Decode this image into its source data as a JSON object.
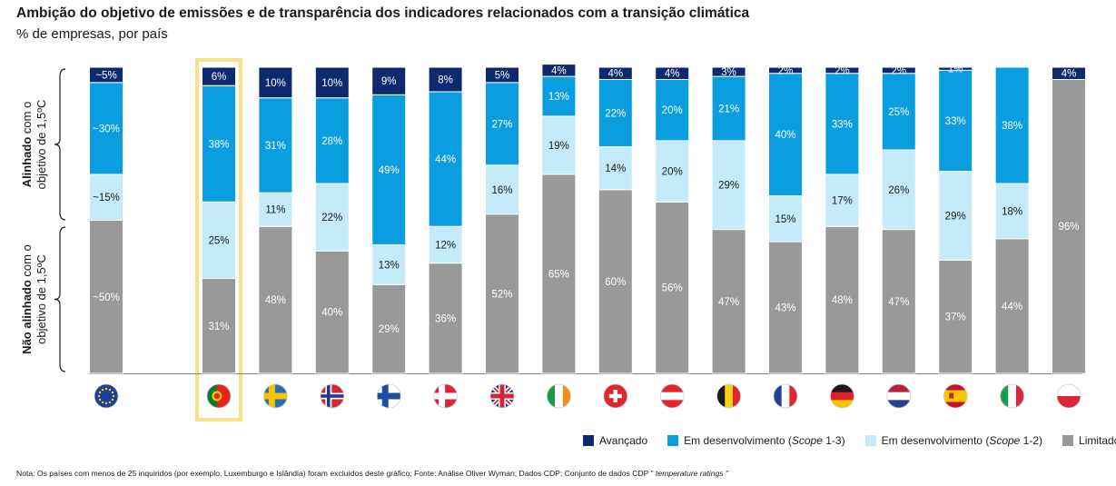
{
  "header": {
    "title": "Ambição do objetivo de emissões e de transparência dos indicadores relacionados com a transição climática",
    "subtitle": "% de empresas, por país"
  },
  "chart_data": {
    "type": "bar",
    "stacked": true,
    "orientation": "vertical-100",
    "categories": [
      "EU",
      "Portugal",
      "Sweden",
      "Norway",
      "Finland",
      "Denmark",
      "United Kingdom",
      "Ireland",
      "Switzerland",
      "Austria",
      "Belgium",
      "France",
      "Germany",
      "Netherlands",
      "Spain",
      "Italy",
      "Poland"
    ],
    "highlight_category": "Portugal",
    "series": [
      {
        "name": "Limitado",
        "color": "#999999",
        "values": [
          50,
          31,
          48,
          40,
          29,
          36,
          52,
          65,
          60,
          56,
          47,
          43,
          48,
          47,
          37,
          44,
          96
        ],
        "labels": [
          "~50%",
          "31%",
          "48%",
          "40%",
          "29%",
          "36%",
          "52%",
          "65%",
          "60%",
          "56%",
          "47%",
          "43%",
          "48%",
          "47%",
          "37%",
          "44%",
          "96%"
        ]
      },
      {
        "name": "Em desenvolvimento (Scope 1-2)",
        "color": "#c5ebfb",
        "values": [
          15,
          25,
          11,
          22,
          13,
          12,
          16,
          19,
          14,
          20,
          29,
          15,
          17,
          26,
          29,
          18,
          0
        ],
        "labels": [
          "~15%",
          "25%",
          "11%",
          "22%",
          "13%",
          "12%",
          "16%",
          "19%",
          "14%",
          "20%",
          "29%",
          "15%",
          "17%",
          "26%",
          "29%",
          "18%",
          ""
        ]
      },
      {
        "name": "Em desenvolvimento (Scope 1-3)",
        "color": "#0a9ee0",
        "values": [
          30,
          38,
          31,
          28,
          49,
          44,
          27,
          13,
          22,
          20,
          21,
          40,
          33,
          25,
          33,
          38,
          0
        ],
        "labels": [
          "~30%",
          "38%",
          "31%",
          "28%",
          "49%",
          "44%",
          "27%",
          "13%",
          "22%",
          "20%",
          "21%",
          "40%",
          "33%",
          "25%",
          "33%",
          "38%",
          ""
        ]
      },
      {
        "name": "Avançado",
        "color": "#0d2a6e",
        "values": [
          5,
          6,
          10,
          10,
          9,
          8,
          5,
          4,
          4,
          4,
          3,
          2,
          2,
          2,
          1,
          0,
          4
        ],
        "labels": [
          "~5%",
          "6%",
          "10%",
          "10%",
          "9%",
          "8%",
          "5%",
          "4%",
          "4%",
          "4%",
          "3%",
          "2%",
          "2%",
          "2%",
          "1%",
          "",
          "4%"
        ]
      }
    ],
    "group_labels": [
      {
        "bold": "Alinhado",
        "rest_line1": " com o",
        "line2": "objetivo de 1,5ºC"
      },
      {
        "bold": "Não alinhado",
        "rest_line1": " com o",
        "line2": "objetivo de 1,5ºC"
      }
    ],
    "ylim": [
      0,
      100
    ]
  },
  "legend": {
    "items": [
      {
        "label": "Avançado",
        "color": "#0d2a6e"
      },
      {
        "label_pre": "Em desenvolvimento (",
        "label_em": "Scope",
        "label_post": " 1-3)",
        "color": "#0a9ee0"
      },
      {
        "label_pre": "Em desenvolvimento (",
        "label_em": "Scope",
        "label_post": " 1-2)",
        "color": "#c5ebfb"
      },
      {
        "label": "Limitado",
        "color": "#999999"
      }
    ]
  },
  "footnote": {
    "text": "Nota: Os países com menos de 25 inquiridos (por exemplo, Luxemburgo e Islândia) foram excluídos deste gráfico; Fonte: Análise Oliver Wyman; Dados CDP; Conjunto de dados CDP \"",
    "italic": " temperature ratings \""
  },
  "flags": [
    {
      "country": "EU",
      "icon": "eu-flag-icon"
    },
    {
      "country": "Portugal",
      "icon": "portugal-flag-icon"
    },
    {
      "country": "Sweden",
      "icon": "sweden-flag-icon"
    },
    {
      "country": "Norway",
      "icon": "norway-flag-icon"
    },
    {
      "country": "Finland",
      "icon": "finland-flag-icon"
    },
    {
      "country": "Denmark",
      "icon": "denmark-flag-icon"
    },
    {
      "country": "United Kingdom",
      "icon": "uk-flag-icon"
    },
    {
      "country": "Ireland",
      "icon": "ireland-flag-icon"
    },
    {
      "country": "Switzerland",
      "icon": "switzerland-flag-icon"
    },
    {
      "country": "Austria",
      "icon": "austria-flag-icon"
    },
    {
      "country": "Belgium",
      "icon": "belgium-flag-icon"
    },
    {
      "country": "France",
      "icon": "france-flag-icon"
    },
    {
      "country": "Germany",
      "icon": "germany-flag-icon"
    },
    {
      "country": "Netherlands",
      "icon": "netherlands-flag-icon"
    },
    {
      "country": "Spain",
      "icon": "spain-flag-icon"
    },
    {
      "country": "Italy",
      "icon": "italy-flag-icon"
    },
    {
      "country": "Poland",
      "icon": "poland-flag-icon"
    }
  ],
  "colors": {
    "highlight": "#fbe08a",
    "axis": "#7f7f7f",
    "label_dark_bg": "#ffffff",
    "label_light_bg": "#1a1a1a"
  }
}
